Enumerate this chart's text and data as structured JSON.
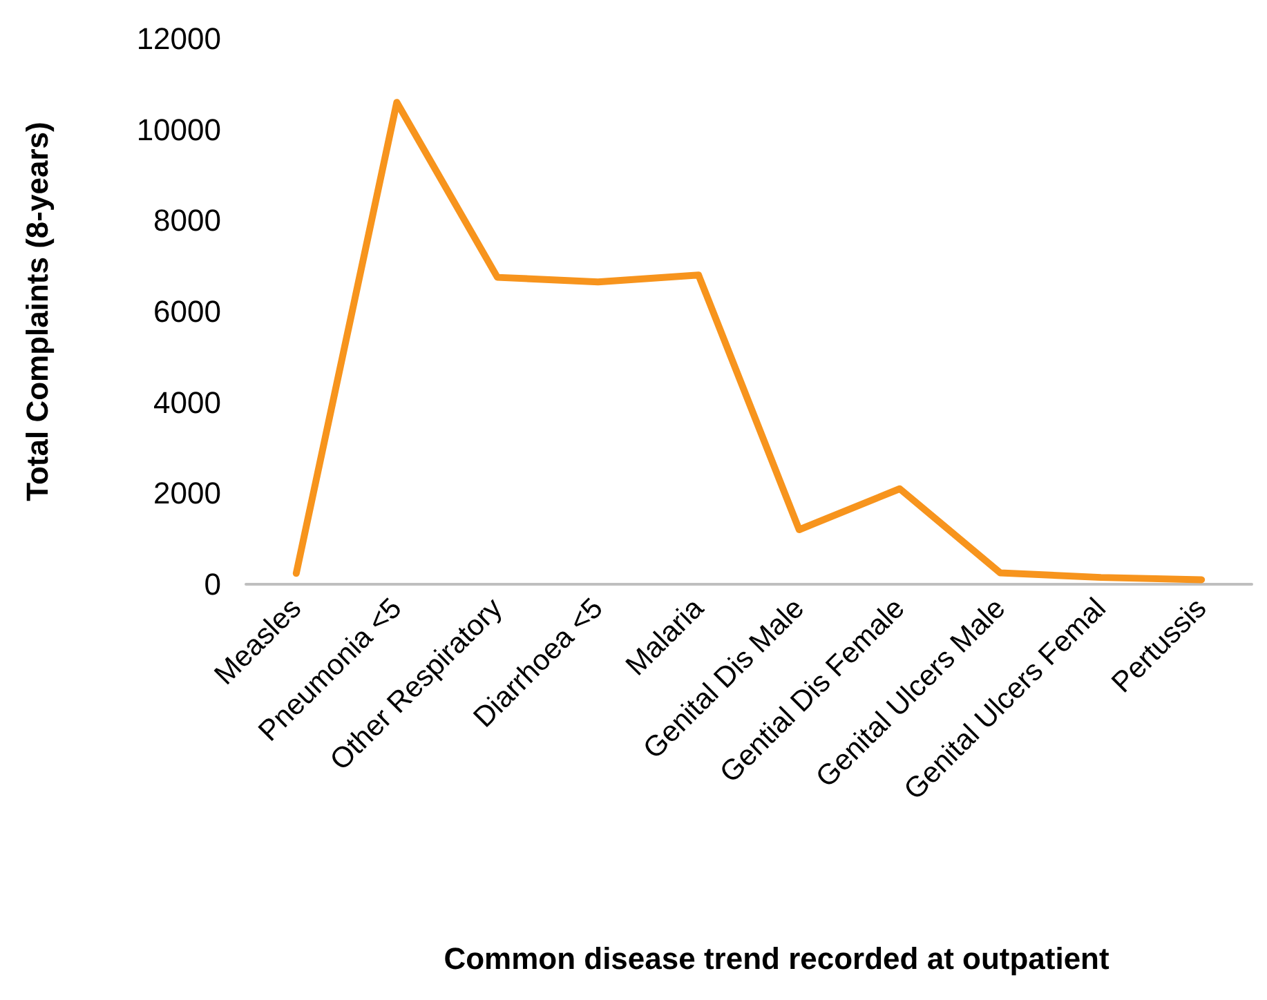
{
  "chart_data": {
    "type": "line",
    "xlabel": "Common disease trend recorded at outpatient",
    "ylabel": "Total Complaints (8-years)",
    "categories": [
      "Measles",
      "Pneumonia <5",
      "Other Respiratory",
      "Diarrhoea <5",
      "Malaria",
      "Genital Dis Male",
      "Gential Dis Female",
      "Genital Ulcers Male",
      "Genital Ulcers Femal",
      "Pertussis"
    ],
    "series": [
      {
        "color": "#f7941d",
        "values": [
          240,
          10600,
          6750,
          6650,
          6800,
          1200,
          2100,
          250,
          150,
          100
        ]
      }
    ],
    "ylim": [
      0,
      12000
    ],
    "yticks": [
      0,
      2000,
      4000,
      6000,
      8000,
      10000,
      12000
    ],
    "grid": false,
    "marker": "none",
    "line_style": "solid"
  }
}
